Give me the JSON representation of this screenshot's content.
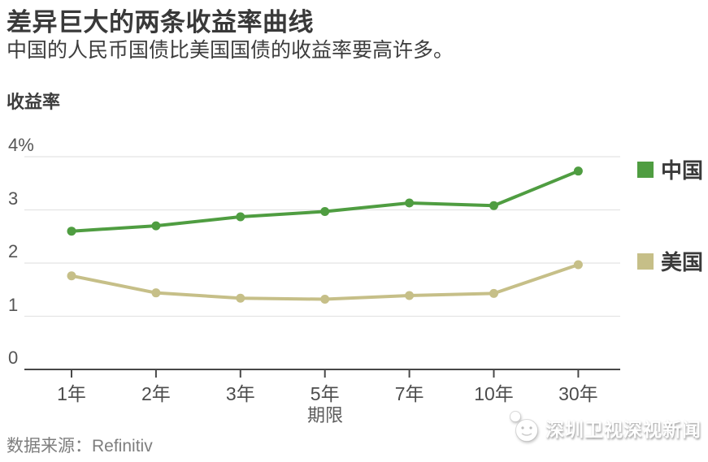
{
  "chart_data": {
    "type": "line",
    "title": "差异巨大的两条收益率曲线",
    "subtitle": "中国的人民币国债比美国国债的收益率要高许多。",
    "ylabel": "收益率",
    "xlabel": "期限",
    "categories": [
      "1年",
      "2年",
      "3年",
      "5年",
      "7年",
      "10年",
      "30年"
    ],
    "series": [
      {
        "name": "中国",
        "color": "#4f9d41",
        "values": [
          2.6,
          2.7,
          2.87,
          2.97,
          3.13,
          3.08,
          3.73
        ]
      },
      {
        "name": "美国",
        "color": "#c6bf88",
        "values": [
          1.76,
          1.44,
          1.34,
          1.32,
          1.39,
          1.43,
          1.97
        ]
      }
    ],
    "ylim": [
      0,
      4
    ],
    "yticks": [
      {
        "value": 0,
        "label": "0"
      },
      {
        "value": 1,
        "label": "1"
      },
      {
        "value": 2,
        "label": "2"
      },
      {
        "value": 3,
        "label": "3"
      },
      {
        "value": 4,
        "label": "4%"
      }
    ],
    "grid": true,
    "legend_position": "right",
    "grid_color": "#e4e4e4",
    "axis_color": "#484848"
  },
  "source": {
    "label": "数据来源：Refinitiv"
  },
  "watermark": {
    "text": "深圳卫视深视新闻"
  }
}
